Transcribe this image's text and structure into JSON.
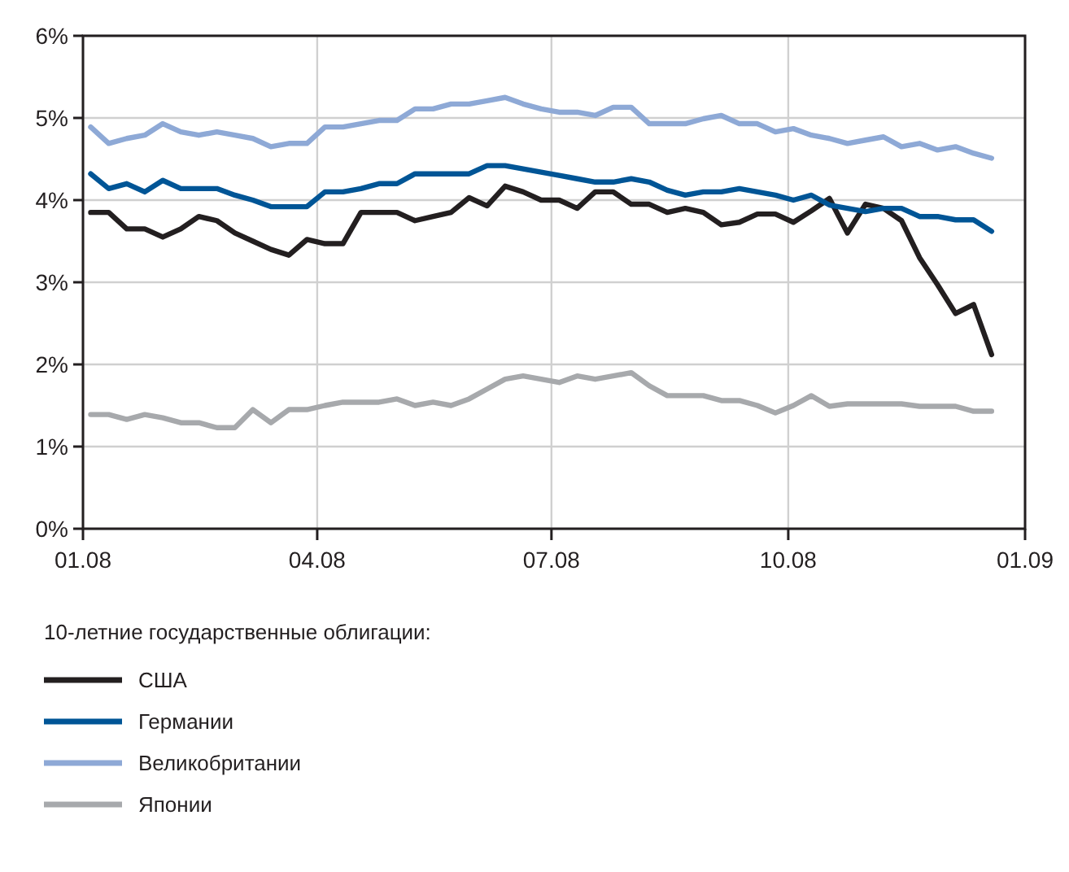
{
  "chart_data": {
    "type": "line",
    "x": [
      "2008-01-04",
      "2008-01-11",
      "2008-01-18",
      "2008-01-25",
      "2008-02-01",
      "2008-02-08",
      "2008-02-15",
      "2008-02-22",
      "2008-02-29",
      "2008-03-07",
      "2008-03-14",
      "2008-03-21",
      "2008-03-28",
      "2008-04-04",
      "2008-04-11",
      "2008-04-18",
      "2008-04-25",
      "2008-05-02",
      "2008-05-09",
      "2008-05-16",
      "2008-05-23",
      "2008-05-30",
      "2008-06-06",
      "2008-06-13",
      "2008-06-20",
      "2008-06-27",
      "2008-07-04",
      "2008-07-11",
      "2008-07-18",
      "2008-07-25",
      "2008-08-01",
      "2008-08-08",
      "2008-08-15",
      "2008-08-22",
      "2008-08-29",
      "2008-09-05",
      "2008-09-12",
      "2008-09-19",
      "2008-09-26",
      "2008-10-03",
      "2008-10-10",
      "2008-10-17",
      "2008-10-24",
      "2008-10-31",
      "2008-11-07",
      "2008-11-14",
      "2008-11-21",
      "2008-11-28",
      "2008-12-05",
      "2008-12-12",
      "2008-12-19"
    ],
    "series": [
      {
        "name": "США",
        "color": "#231f20",
        "values": [
          3.85,
          3.85,
          3.65,
          3.65,
          3.55,
          3.65,
          3.8,
          3.75,
          3.6,
          3.5,
          3.4,
          3.33,
          3.52,
          3.47,
          3.47,
          3.85,
          3.85,
          3.85,
          3.75,
          3.8,
          3.85,
          4.03,
          3.93,
          4.17,
          4.1,
          4.0,
          4.0,
          3.9,
          4.1,
          4.1,
          3.95,
          3.95,
          3.85,
          3.9,
          3.85,
          3.7,
          3.73,
          3.83,
          3.83,
          3.73,
          3.87,
          4.02,
          3.6,
          3.95,
          3.9,
          3.75,
          3.3,
          2.97,
          2.62,
          2.73,
          2.12
        ]
      },
      {
        "name": "Германии",
        "color": "#005596",
        "values": [
          4.32,
          4.14,
          4.2,
          4.1,
          4.24,
          4.14,
          4.14,
          4.14,
          4.06,
          4.0,
          3.92,
          3.92,
          3.92,
          4.1,
          4.1,
          4.14,
          4.2,
          4.2,
          4.32,
          4.32,
          4.32,
          4.32,
          4.42,
          4.42,
          4.38,
          4.34,
          4.3,
          4.26,
          4.22,
          4.22,
          4.26,
          4.22,
          4.12,
          4.06,
          4.1,
          4.1,
          4.14,
          4.1,
          4.06,
          4.0,
          4.06,
          3.94,
          3.9,
          3.86,
          3.9,
          3.9,
          3.8,
          3.8,
          3.76,
          3.76,
          3.62
        ]
      },
      {
        "name": "Великобритании",
        "color": "#8ea9d6",
        "values": [
          4.89,
          4.69,
          4.75,
          4.79,
          4.93,
          4.83,
          4.79,
          4.83,
          4.79,
          4.75,
          4.65,
          4.69,
          4.69,
          4.89,
          4.89,
          4.93,
          4.97,
          4.97,
          5.11,
          5.11,
          5.17,
          5.17,
          5.21,
          5.25,
          5.17,
          5.11,
          5.07,
          5.07,
          5.03,
          5.13,
          5.13,
          4.93,
          4.93,
          4.93,
          4.99,
          5.03,
          4.93,
          4.93,
          4.83,
          4.87,
          4.79,
          4.75,
          4.69,
          4.73,
          4.77,
          4.65,
          4.69,
          4.61,
          4.65,
          4.57,
          4.51
        ]
      },
      {
        "name": "Японии",
        "color": "#a7a9ac",
        "values": [
          1.39,
          1.39,
          1.33,
          1.39,
          1.35,
          1.29,
          1.29,
          1.23,
          1.23,
          1.45,
          1.29,
          1.45,
          1.45,
          1.5,
          1.54,
          1.54,
          1.54,
          1.58,
          1.5,
          1.54,
          1.5,
          1.58,
          1.7,
          1.82,
          1.86,
          1.82,
          1.78,
          1.86,
          1.82,
          1.86,
          1.9,
          1.74,
          1.62,
          1.62,
          1.62,
          1.56,
          1.56,
          1.5,
          1.41,
          1.5,
          1.62,
          1.49,
          1.52,
          1.52,
          1.52,
          1.52,
          1.49,
          1.49,
          1.49,
          1.43,
          1.43
        ]
      }
    ],
    "xlim": [
      "2008-01-01",
      "2009-01-01"
    ],
    "xticks": [
      {
        "value": "2008-01-01",
        "label": "01.08"
      },
      {
        "value": "2008-04-01",
        "label": "04.08"
      },
      {
        "value": "2008-07-01",
        "label": "07.08"
      },
      {
        "value": "2008-10-01",
        "label": "10.08"
      },
      {
        "value": "2009-01-01",
        "label": "01.09"
      }
    ],
    "ylim": [
      0,
      6
    ],
    "yticks": [
      {
        "value": 0,
        "label": "0%"
      },
      {
        "value": 1,
        "label": "1%"
      },
      {
        "value": 2,
        "label": "2%"
      },
      {
        "value": 3,
        "label": "3%"
      },
      {
        "value": 4,
        "label": "4%"
      },
      {
        "value": 5,
        "label": "5%"
      },
      {
        "value": 6,
        "label": "6%"
      }
    ],
    "grid": true,
    "legend": "bottom",
    "legend_title": "10-летние государственные облигации:",
    "line_style": "solid",
    "marker": "none"
  }
}
